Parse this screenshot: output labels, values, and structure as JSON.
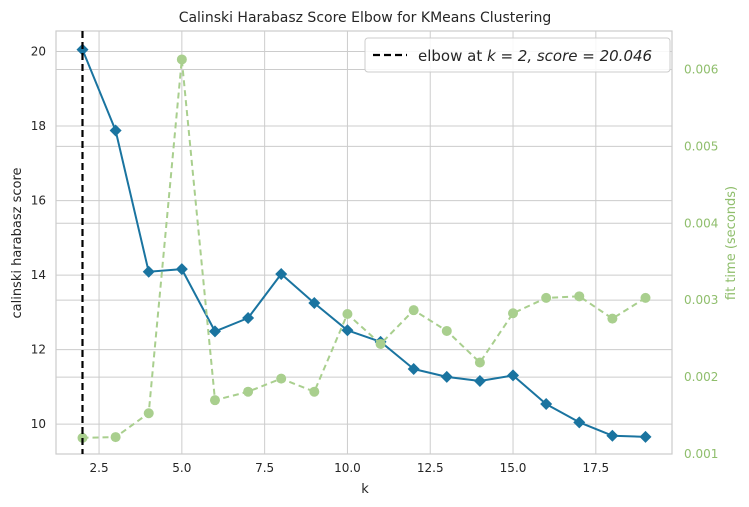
{
  "chart_data": {
    "type": "line",
    "title": "Calinski Harabasz Score Elbow for KMeans Clustering",
    "xlabel": "k",
    "ylabel": "calinski harabasz score",
    "y2label": "fit time (seconds)",
    "xlim": [
      1.2,
      19.8
    ],
    "ylim": [
      9.2,
      20.55
    ],
    "y2lim": [
      0.001,
      0.0065
    ],
    "x_ticks": [
      2.5,
      5.0,
      7.5,
      10.0,
      12.5,
      15.0,
      17.5
    ],
    "x_tick_labels": [
      "2.5",
      "5.0",
      "7.5",
      "10.0",
      "12.5",
      "15.0",
      "17.5"
    ],
    "y_ticks": [
      10,
      12,
      14,
      16,
      18,
      20
    ],
    "y_tick_labels": [
      "10",
      "12",
      "14",
      "16",
      "18",
      "20"
    ],
    "y2_ticks": [
      0.001,
      0.002,
      0.003,
      0.004,
      0.005,
      0.006
    ],
    "y2_tick_labels": [
      "0.001",
      "0.002",
      "0.003",
      "0.004",
      "0.005",
      "0.006"
    ],
    "grid": true,
    "legend_position": "top-right",
    "series": [
      {
        "axis": "left",
        "color": "#1a74a0",
        "marker": "diamond",
        "style": "solid",
        "x": [
          2,
          3,
          4,
          5,
          6,
          7,
          8,
          9,
          10,
          11,
          12,
          13,
          14,
          15,
          16,
          17,
          18,
          19
        ],
        "values": [
          20.05,
          17.88,
          14.09,
          14.16,
          12.49,
          12.85,
          14.03,
          13.25,
          12.52,
          12.21,
          11.48,
          11.27,
          11.16,
          11.31,
          10.54,
          10.05,
          9.69,
          9.66
        ]
      },
      {
        "axis": "right",
        "color": "#a9cf8e",
        "marker": "circle",
        "style": "dashed",
        "x": [
          2,
          3,
          4,
          5,
          6,
          7,
          8,
          9,
          10,
          11,
          12,
          13,
          14,
          15,
          16,
          17,
          18,
          19
        ],
        "values": [
          0.00121,
          0.00122,
          0.00153,
          0.00613,
          0.0017,
          0.00181,
          0.00198,
          0.00181,
          0.00282,
          0.00243,
          0.00287,
          0.0026,
          0.00219,
          0.00283,
          0.00303,
          0.00305,
          0.00276,
          0.00303
        ]
      }
    ],
    "elbow": {
      "k": 2,
      "score": "20.046",
      "legend_label": "elbow at ",
      "legend_math": "k = 2, score = 20.046",
      "color": "#000000"
    }
  }
}
